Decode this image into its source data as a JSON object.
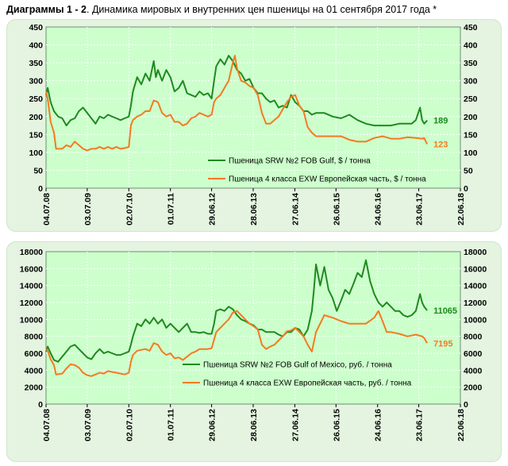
{
  "header": {
    "bold": "Диаграммы 1 - 2",
    "rest": ". Динамика мировых и внутренних цен пшеницы на 01 сентября 2017 года *"
  },
  "colors": {
    "green": "#1f8a1f",
    "orange": "#f57a1f",
    "plot_bg": "#ccffcc",
    "panel_bg": "#e4f4e0"
  },
  "chart_data": [
    {
      "type": "line",
      "title": "",
      "x_tick_labels": [
        "04.07.08",
        "03.07.09",
        "02.07.10",
        "01.07.11",
        "29.06.12",
        "28.06.13",
        "27.06.14",
        "26.06.15",
        "24.06.16",
        "23.06.17",
        "22.06.18"
      ],
      "x_tick_years": [
        2008.51,
        2009.5,
        2010.5,
        2011.5,
        2012.49,
        2013.49,
        2014.49,
        2015.48,
        2016.48,
        2017.47,
        2018.47
      ],
      "xlim": [
        2008.51,
        2018.47
      ],
      "ylim": [
        0,
        450
      ],
      "yticks": [
        0,
        50,
        100,
        150,
        200,
        250,
        300,
        350,
        400,
        450
      ],
      "grid": true,
      "legend": "bottom-right",
      "series": [
        {
          "name": "Пшеница SRW №2 FOB Gulf, $ / тонна",
          "color": "#1f8a1f",
          "end_label": "189",
          "x": [
            2008.51,
            2008.55,
            2008.62,
            2008.7,
            2008.8,
            2008.9,
            2009.0,
            2009.1,
            2009.2,
            2009.3,
            2009.4,
            2009.5,
            2009.6,
            2009.7,
            2009.8,
            2009.9,
            2010.0,
            2010.1,
            2010.2,
            2010.3,
            2010.4,
            2010.5,
            2010.55,
            2010.6,
            2010.7,
            2010.8,
            2010.9,
            2011.0,
            2011.1,
            2011.15,
            2011.2,
            2011.3,
            2011.4,
            2011.5,
            2011.6,
            2011.7,
            2011.8,
            2011.9,
            2012.0,
            2012.1,
            2012.2,
            2012.3,
            2012.4,
            2012.49,
            2012.55,
            2012.6,
            2012.7,
            2012.8,
            2012.9,
            2013.0,
            2013.1,
            2013.2,
            2013.3,
            2013.4,
            2013.5,
            2013.6,
            2013.7,
            2013.8,
            2013.9,
            2014.0,
            2014.1,
            2014.2,
            2014.3,
            2014.4,
            2014.5,
            2014.6,
            2014.7,
            2014.8,
            2014.9,
            2015.0,
            2015.2,
            2015.4,
            2015.6,
            2015.8,
            2016.0,
            2016.2,
            2016.4,
            2016.6,
            2016.8,
            2017.0,
            2017.2,
            2017.3,
            2017.4,
            2017.5,
            2017.55,
            2017.6,
            2017.67
          ],
          "y": [
            260,
            280,
            240,
            215,
            200,
            195,
            175,
            190,
            195,
            215,
            225,
            210,
            195,
            180,
            200,
            195,
            205,
            200,
            195,
            190,
            195,
            200,
            230,
            270,
            310,
            290,
            320,
            300,
            355,
            310,
            330,
            300,
            330,
            310,
            270,
            280,
            300,
            265,
            260,
            255,
            270,
            260,
            265,
            250,
            300,
            340,
            360,
            345,
            370,
            355,
            330,
            320,
            300,
            305,
            280,
            265,
            265,
            250,
            240,
            245,
            225,
            230,
            225,
            260,
            240,
            230,
            215,
            215,
            205,
            210,
            210,
            200,
            195,
            205,
            190,
            180,
            175,
            175,
            175,
            180,
            180,
            180,
            190,
            225,
            190,
            180,
            189
          ]
        },
        {
          "name": "Пшеница 4 класса EXW Европейская часть, $ / тонна",
          "color": "#f57a1f",
          "end_label": "123",
          "x": [
            2008.51,
            2008.55,
            2008.62,
            2008.7,
            2008.75,
            2008.9,
            2009.0,
            2009.1,
            2009.2,
            2009.3,
            2009.4,
            2009.5,
            2009.6,
            2009.7,
            2009.8,
            2009.9,
            2010.0,
            2010.1,
            2010.2,
            2010.3,
            2010.4,
            2010.5,
            2010.55,
            2010.6,
            2010.7,
            2010.8,
            2010.9,
            2011.0,
            2011.1,
            2011.2,
            2011.3,
            2011.4,
            2011.5,
            2011.6,
            2011.7,
            2011.8,
            2011.9,
            2012.0,
            2012.1,
            2012.2,
            2012.3,
            2012.4,
            2012.49,
            2012.55,
            2012.6,
            2012.7,
            2012.8,
            2012.9,
            2013.0,
            2013.05,
            2013.1,
            2013.2,
            2013.3,
            2013.4,
            2013.5,
            2013.6,
            2013.7,
            2013.8,
            2013.9,
            2014.0,
            2014.1,
            2014.2,
            2014.3,
            2014.4,
            2014.5,
            2014.6,
            2014.7,
            2014.8,
            2014.9,
            2015.0,
            2015.2,
            2015.4,
            2015.6,
            2015.8,
            2016.0,
            2016.2,
            2016.4,
            2016.6,
            2016.8,
            2017.0,
            2017.2,
            2017.4,
            2017.55,
            2017.6,
            2017.67
          ],
          "y": [
            270,
            250,
            185,
            155,
            110,
            110,
            120,
            115,
            130,
            120,
            110,
            105,
            110,
            110,
            115,
            110,
            115,
            110,
            115,
            110,
            112,
            115,
            175,
            190,
            200,
            205,
            215,
            215,
            245,
            240,
            210,
            200,
            205,
            185,
            185,
            175,
            180,
            195,
            200,
            210,
            205,
            200,
            205,
            240,
            250,
            260,
            280,
            300,
            350,
            370,
            335,
            300,
            295,
            285,
            280,
            260,
            210,
            180,
            180,
            190,
            200,
            220,
            240,
            255,
            260,
            230,
            215,
            170,
            155,
            145,
            145,
            145,
            145,
            135,
            130,
            130,
            140,
            145,
            138,
            138,
            142,
            140,
            138,
            140,
            123
          ]
        }
      ]
    },
    {
      "type": "line",
      "title": "",
      "x_tick_labels": [
        "04.07.08",
        "03.07.09",
        "02.07.10",
        "01.07.11",
        "29.06.12",
        "28.06.13",
        "27.06.14",
        "26.06.15",
        "24.06.16",
        "23.06.17",
        "22.06.18"
      ],
      "x_tick_years": [
        2008.51,
        2009.5,
        2010.5,
        2011.5,
        2012.49,
        2013.49,
        2014.49,
        2015.48,
        2016.48,
        2017.47,
        2018.47
      ],
      "xlim": [
        2008.51,
        2018.47
      ],
      "ylim": [
        0,
        18000
      ],
      "yticks": [
        0,
        2000,
        4000,
        6000,
        8000,
        10000,
        12000,
        14000,
        16000,
        18000
      ],
      "grid": true,
      "legend": "bottom-right",
      "series": [
        {
          "name": "Пшеница SRW №2 FOB Gulf of Mexico, руб. / тонна",
          "color": "#1f8a1f",
          "end_label": "11065",
          "x": [
            2008.51,
            2008.55,
            2008.62,
            2008.7,
            2008.8,
            2008.9,
            2009.0,
            2009.1,
            2009.2,
            2009.3,
            2009.4,
            2009.5,
            2009.6,
            2009.7,
            2009.8,
            2009.9,
            2010.0,
            2010.1,
            2010.2,
            2010.3,
            2010.4,
            2010.5,
            2010.55,
            2010.6,
            2010.7,
            2010.8,
            2010.9,
            2011.0,
            2011.1,
            2011.2,
            2011.3,
            2011.4,
            2011.5,
            2011.6,
            2011.7,
            2011.8,
            2011.9,
            2012.0,
            2012.1,
            2012.2,
            2012.3,
            2012.4,
            2012.49,
            2012.55,
            2012.6,
            2012.7,
            2012.8,
            2012.9,
            2013.0,
            2013.1,
            2013.2,
            2013.3,
            2013.4,
            2013.5,
            2013.6,
            2013.7,
            2013.8,
            2013.9,
            2014.0,
            2014.1,
            2014.2,
            2014.3,
            2014.4,
            2014.5,
            2014.6,
            2014.7,
            2014.8,
            2014.9,
            2014.95,
            2015.0,
            2015.1,
            2015.2,
            2015.3,
            2015.4,
            2015.5,
            2015.6,
            2015.7,
            2015.8,
            2015.9,
            2016.0,
            2016.1,
            2016.2,
            2016.3,
            2016.4,
            2016.5,
            2016.6,
            2016.7,
            2016.8,
            2016.9,
            2017.0,
            2017.1,
            2017.2,
            2017.3,
            2017.4,
            2017.5,
            2017.55,
            2017.6,
            2017.67
          ],
          "y": [
            6200,
            6800,
            6000,
            5200,
            5000,
            5600,
            6200,
            6800,
            7000,
            6500,
            6000,
            5500,
            5300,
            6000,
            6500,
            6000,
            6200,
            6000,
            5800,
            5800,
            6000,
            6200,
            7000,
            8000,
            9500,
            9200,
            10000,
            9500,
            10200,
            9500,
            10000,
            9000,
            9500,
            9000,
            8500,
            9000,
            9500,
            8500,
            8500,
            8400,
            8500,
            8300,
            8300,
            9500,
            11000,
            11200,
            11000,
            11500,
            11200,
            10500,
            10000,
            9800,
            9500,
            9300,
            8800,
            8800,
            8500,
            8500,
            8500,
            8200,
            8000,
            8500,
            8500,
            9000,
            8800,
            8000,
            8800,
            11000,
            13500,
            16500,
            14000,
            16200,
            13500,
            12500,
            11000,
            12200,
            13500,
            13000,
            14200,
            15500,
            15000,
            17000,
            14500,
            13000,
            12000,
            11500,
            12000,
            11500,
            11000,
            11000,
            10500,
            10300,
            10500,
            11000,
            13000,
            12000,
            11500,
            11065
          ]
        },
        {
          "name": "Пшеница 4 класса EXW Европейская часть, руб. / тонна",
          "color": "#f57a1f",
          "end_label": "7195",
          "x": [
            2008.51,
            2008.55,
            2008.62,
            2008.7,
            2008.75,
            2008.9,
            2009.0,
            2009.1,
            2009.2,
            2009.3,
            2009.4,
            2009.5,
            2009.6,
            2009.7,
            2009.8,
            2009.9,
            2010.0,
            2010.1,
            2010.2,
            2010.3,
            2010.4,
            2010.5,
            2010.55,
            2010.6,
            2010.7,
            2010.8,
            2010.9,
            2011.0,
            2011.1,
            2011.2,
            2011.3,
            2011.4,
            2011.5,
            2011.6,
            2011.7,
            2011.8,
            2011.9,
            2012.0,
            2012.1,
            2012.2,
            2012.3,
            2012.4,
            2012.49,
            2012.55,
            2012.6,
            2012.7,
            2012.8,
            2012.9,
            2013.0,
            2013.1,
            2013.2,
            2013.3,
            2013.4,
            2013.5,
            2013.6,
            2013.7,
            2013.8,
            2013.9,
            2014.0,
            2014.1,
            2014.2,
            2014.3,
            2014.4,
            2014.5,
            2014.6,
            2014.7,
            2014.8,
            2014.9,
            2015.0,
            2015.2,
            2015.4,
            2015.6,
            2015.8,
            2016.0,
            2016.2,
            2016.4,
            2016.5,
            2016.6,
            2016.7,
            2016.8,
            2017.0,
            2017.2,
            2017.4,
            2017.55,
            2017.6,
            2017.67
          ],
          "y": [
            6500,
            6300,
            5300,
            4600,
            3500,
            3600,
            4200,
            4700,
            4600,
            4300,
            3700,
            3400,
            3300,
            3500,
            3700,
            3600,
            3900,
            3800,
            3700,
            3600,
            3500,
            3700,
            5000,
            5800,
            6300,
            6400,
            6500,
            6300,
            7200,
            7000,
            6200,
            5800,
            6000,
            5400,
            5500,
            5200,
            5600,
            6000,
            6200,
            6500,
            6500,
            6500,
            6600,
            7600,
            8500,
            9000,
            9500,
            10000,
            10800,
            11000,
            10500,
            10000,
            9500,
            9200,
            8800,
            7000,
            6500,
            6800,
            7000,
            7500,
            8000,
            8600,
            8700,
            9000,
            8500,
            8000,
            7000,
            6200,
            8500,
            10500,
            10200,
            9800,
            9500,
            9500,
            9500,
            10200,
            11000,
            9800,
            8500,
            8500,
            8300,
            8000,
            8200,
            8000,
            7800,
            7195
          ]
        }
      ]
    }
  ]
}
